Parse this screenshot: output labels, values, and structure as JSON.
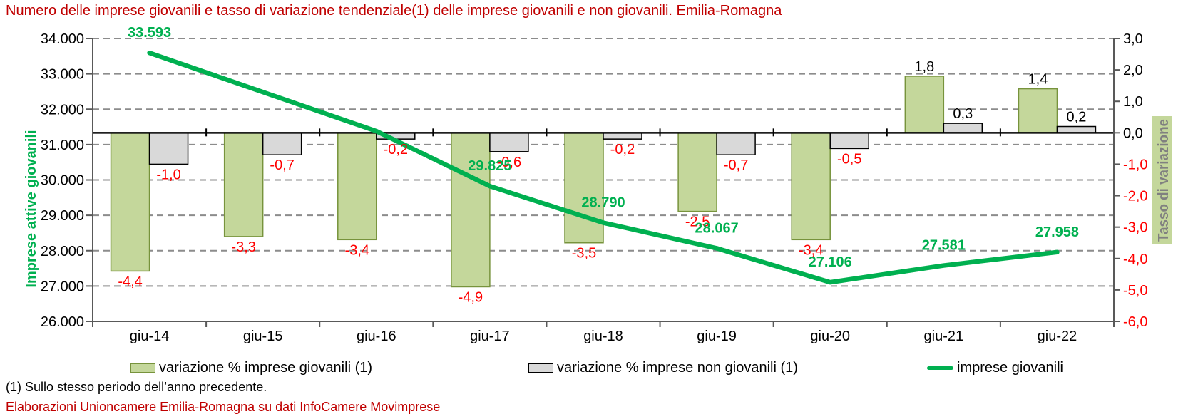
{
  "title": {
    "text": "Numero delle imprese giovanili e tasso di variazione tendenziale(1) delle imprese giovanili e non giovanili. Emilia-Romagna",
    "color": "#C00000"
  },
  "chart_data": {
    "type": "combo-bar-line",
    "title": "Numero delle imprese giovanili e tasso di variazione tendenziale(1) delle imprese giovanili e non giovanili. Emilia-Romagna",
    "categories": [
      "giu-14",
      "giu-15",
      "giu-16",
      "giu-17",
      "giu-18",
      "giu-19",
      "giu-20",
      "giu-21",
      "giu-22"
    ],
    "left_axis": {
      "label": "Imprese attive giovanili",
      "min": 26000,
      "max": 34000,
      "step": 1000,
      "tick_labels": [
        "34.000",
        "33.000",
        "32.000",
        "31.000",
        "30.000",
        "29.000",
        "28.000",
        "27.000",
        "26.000"
      ]
    },
    "right_axis": {
      "label": "Tasso di variazione",
      "min": -6,
      "max": 3,
      "step": 1,
      "tick_labels": [
        "3,0",
        "2,0",
        "1,0",
        "0,0",
        "-1,0",
        "-2,0",
        "-3,0",
        "-4,0",
        "-5,0",
        "-6,0"
      ]
    },
    "series": [
      {
        "name": "variazione % imprese giovanili (1)",
        "type": "bar",
        "axis": "right",
        "values": [
          -4.4,
          -3.3,
          -3.4,
          -4.9,
          -3.5,
          -2.5,
          -3.4,
          1.8,
          1.4
        ],
        "labels": [
          "-4,4",
          "-3,3",
          "-3,4",
          "-4,9",
          "-3,5",
          "-2,5",
          "-3,4",
          "1,8",
          "1,4"
        ]
      },
      {
        "name": "variazione % imprese non giovanili (1)",
        "type": "bar",
        "axis": "right",
        "values": [
          -1.0,
          -0.7,
          -0.2,
          -0.6,
          -0.2,
          -0.7,
          -0.5,
          0.3,
          0.2
        ],
        "labels": [
          "-1,0",
          "-0,7",
          "-0,2",
          "-0,6",
          "-0,2",
          "-0,7",
          "-0,5",
          "0,3",
          "0,2"
        ]
      },
      {
        "name": "imprese giovanili",
        "type": "line",
        "axis": "left",
        "values": [
          33593,
          32484,
          31380,
          29825,
          28790,
          28067,
          27106,
          27581,
          27958
        ],
        "labels": [
          "33.593",
          null,
          null,
          "29.825",
          "28.790",
          "28.067",
          "27.106",
          "27.581",
          "27.958"
        ]
      }
    ],
    "grid": "horizontal-dashed",
    "legend_position": "bottom"
  },
  "colors": {
    "bar_giovanili_fill": "#C4D79B",
    "bar_giovanili_border": "#77933C",
    "bar_non_giovanili_fill": "#D9D9D9",
    "bar_non_giovanili_border": "#000000",
    "line": "#00B050",
    "line_label": "#00B050",
    "negative_label": "#FF0000",
    "positive_label": "#000000",
    "title": "#C00000",
    "left_axis_title": "#00B050",
    "right_axis_title_text": "#808080",
    "right_axis_title_bg": "#C4D79B",
    "grid": "#8C8C8C",
    "axis": "#595959",
    "zero_line": "#000000"
  },
  "footnotes": [
    {
      "text": "(1) Sullo stesso periodo dell’anno precedente.",
      "color": "#000000"
    },
    {
      "text": "Elaborazioni Unioncamere Emilia-Romagna su dati InfoCamere Movimprese",
      "color": "#C00000"
    }
  ]
}
